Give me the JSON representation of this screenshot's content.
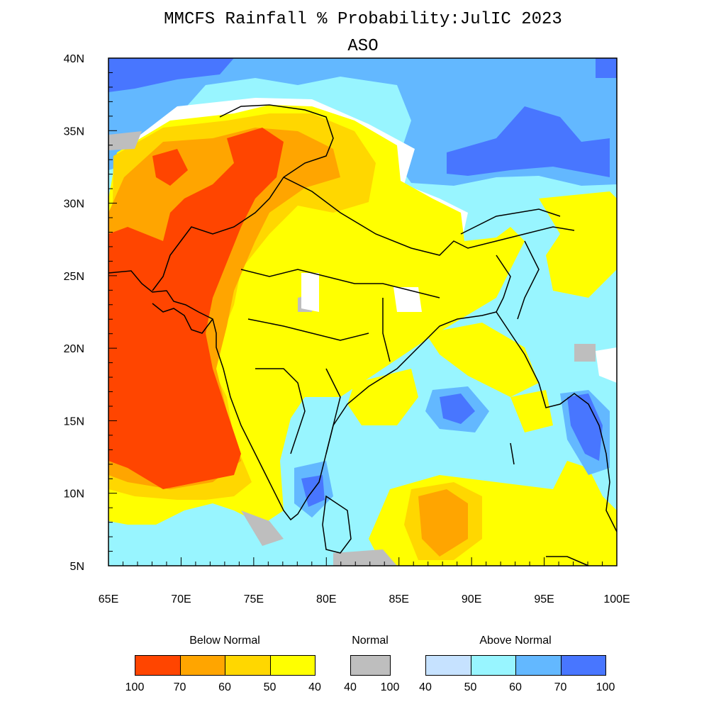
{
  "title": "MMCFS Rainfall % Probability:JulIC 2023",
  "subtitle": "ASO",
  "axes": {
    "x_ticks": [
      "65E",
      "70E",
      "75E",
      "80E",
      "85E",
      "90E",
      "95E",
      "100E"
    ],
    "y_ticks": [
      "40N",
      "35N",
      "30N",
      "25N",
      "20N",
      "15N",
      "10N",
      "5N"
    ]
  },
  "legend": {
    "below": {
      "label": "Below Normal",
      "colors": [
        "#ff4500",
        "#ffa500",
        "#ffd700",
        "#ffff00"
      ],
      "ticks": [
        "100",
        "70",
        "60",
        "50",
        "40"
      ]
    },
    "normal": {
      "label": "Normal",
      "colors": [
        "#bebebe"
      ],
      "ticks": [
        "40",
        "100"
      ]
    },
    "above": {
      "label": "Above Normal",
      "colors": [
        "#c6e2ff",
        "#98f5ff",
        "#63b8ff",
        "#4876ff"
      ],
      "ticks": [
        "40",
        "50",
        "60",
        "70",
        "100"
      ]
    }
  },
  "colors": {
    "bn_100_70": "#ff4500",
    "bn_70_60": "#ffa500",
    "bn_60_50": "#ffd700",
    "bn_50_40": "#ffff00",
    "normal": "#bebebe",
    "an_40_50": "#c6e2ff",
    "an_50_60": "#98f5ff",
    "an_60_70": "#63b8ff",
    "an_70_100": "#4876ff"
  }
}
